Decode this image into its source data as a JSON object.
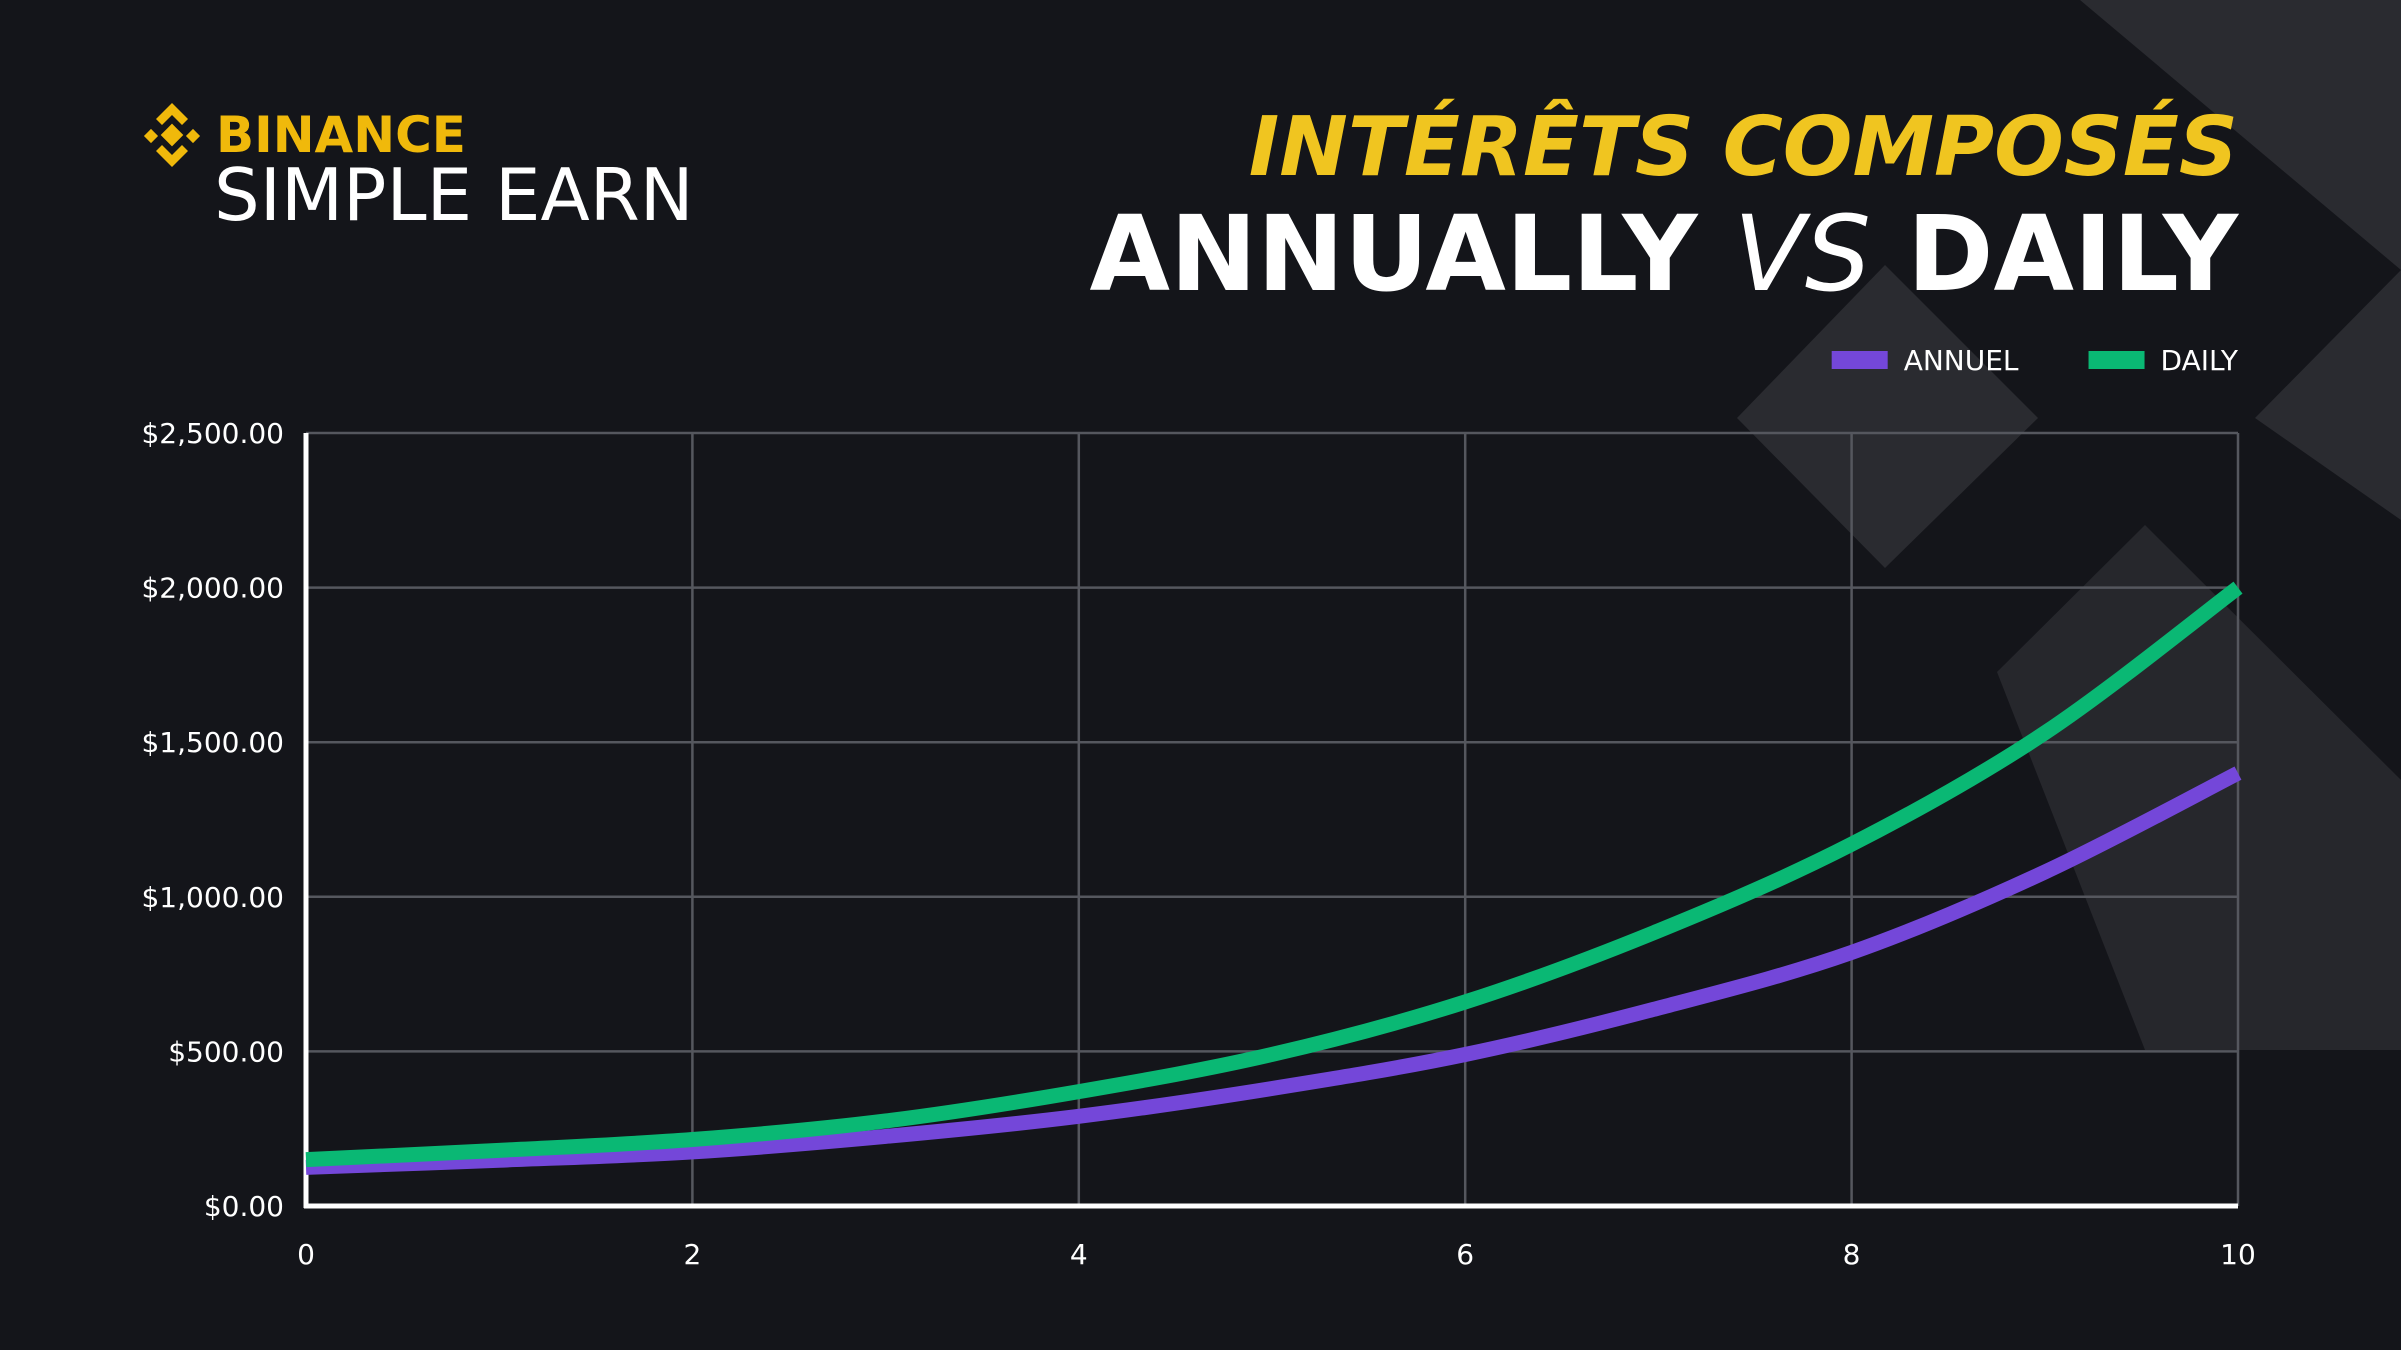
{
  "brand": {
    "name": "BINANCE",
    "product": "SIMPLE EARN"
  },
  "chart_data": {
    "type": "line",
    "title_parts": [
      "INTÉRÊTS COMPOSÉS",
      "ANNUALLY",
      "VS",
      "DAILY"
    ],
    "x": [
      0,
      1,
      2,
      3,
      4,
      5,
      6,
      7,
      8,
      9,
      10
    ],
    "series": [
      {
        "name": "ANNUEL",
        "color": "#7447d9",
        "values": [
          125,
          148,
          175,
          225,
          290,
          380,
          490,
          640,
          820,
          1080,
          1400
        ]
      },
      {
        "name": "DAILY",
        "color": "#0ab874",
        "values": [
          150,
          180,
          215,
          275,
          370,
          490,
          660,
          890,
          1170,
          1530,
          2000
        ]
      }
    ],
    "xlim": [
      0,
      10
    ],
    "xticks": [
      0,
      2,
      4,
      6,
      8,
      10
    ],
    "ylim": [
      0,
      2500
    ],
    "yticks": [
      {
        "value": 0,
        "label": "$0.00"
      },
      {
        "value": 500,
        "label": "$500.00"
      },
      {
        "value": 1000,
        "label": "$1,000.00"
      },
      {
        "value": 1500,
        "label": "$1,500.00"
      },
      {
        "value": 2000,
        "label": "$2,000.00"
      },
      {
        "value": 2500,
        "label": "$2,500.00"
      }
    ],
    "grid": true,
    "legend": "top-right"
  }
}
